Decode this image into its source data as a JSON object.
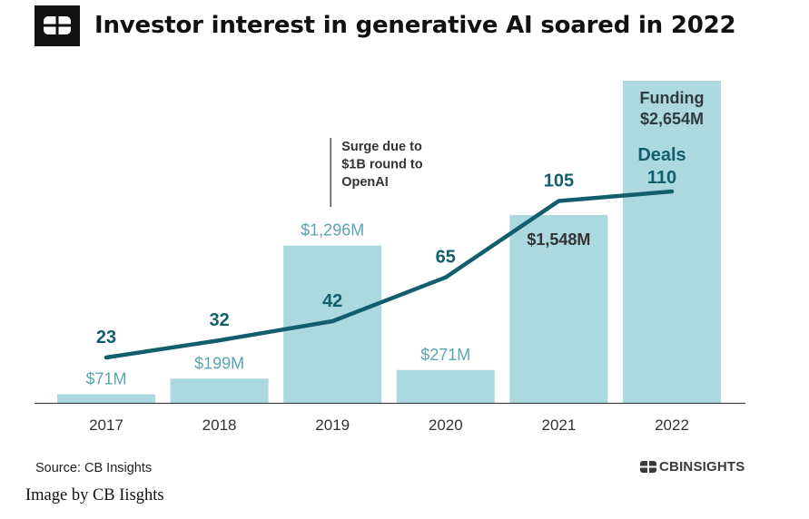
{
  "header": {
    "title": "Investor interest in generative AI soared in 2022",
    "logo_icon": "cb-logo-icon"
  },
  "chart_data": {
    "type": "bar",
    "categories": [
      "2017",
      "2018",
      "2019",
      "2020",
      "2021",
      "2022"
    ],
    "series": [
      {
        "name": "Funding",
        "type": "bar",
        "values": [
          71,
          199,
          1296,
          271,
          1548,
          2654
        ],
        "labels": [
          "$71M",
          "$199M",
          "$1,296M",
          "$271M",
          "$1,548M",
          "$2,654M"
        ],
        "color": "#acd8e0"
      },
      {
        "name": "Deals",
        "type": "line",
        "values": [
          23,
          32,
          42,
          65,
          105,
          110
        ],
        "labels": [
          "23",
          "32",
          "42",
          "65",
          "105",
          "110"
        ],
        "color": "#135e6c"
      }
    ],
    "ylim": [
      0,
      2654
    ],
    "grid": false,
    "annotation": {
      "category": "2019",
      "lines": [
        "Surge due to",
        "$1B round to",
        "OpenAI"
      ]
    },
    "last_bar_label_top": "Funding"
  },
  "footer": {
    "source": "Source: CB Insights",
    "brand": "CBINSIGHTS",
    "brand_icon": "cb-logo-icon"
  },
  "caption": "Image by CB Iisghts"
}
